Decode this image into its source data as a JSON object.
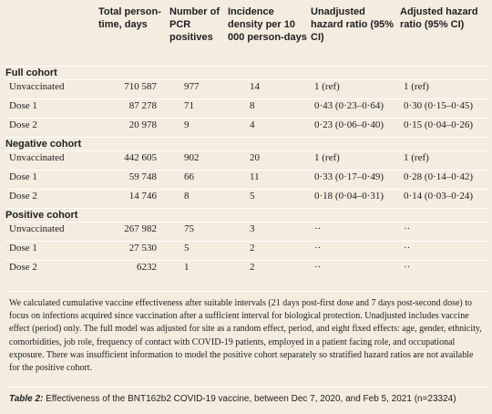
{
  "columns": {
    "c1": "",
    "c2": "Total person-time, days",
    "c3": "Number of PCR positives",
    "c4": "Incidence density per 10 000 person-days",
    "c5": "Unadjusted hazard ratio (95% CI)",
    "c6": "Adjusted hazard ratio (95% CI)"
  },
  "sections": [
    {
      "title": "Full cohort",
      "rows": [
        {
          "label": "Unvaccinated",
          "time": "710 587",
          "pcr": "977",
          "inc": "14",
          "unadj": "1 (ref)",
          "adj": "1 (ref)"
        },
        {
          "label": "Dose 1",
          "time": "87 278",
          "pcr": "71",
          "inc": "8",
          "unadj": "0·43 (0·23–0·64)",
          "adj": "0·30 (0·15–0·45)"
        },
        {
          "label": "Dose 2",
          "time": "20 978",
          "pcr": "9",
          "inc": "4",
          "unadj": "0·23 (0·06–0·40)",
          "adj": "0·15 (0·04–0·26)"
        }
      ]
    },
    {
      "title": "Negative cohort",
      "rows": [
        {
          "label": "Unvaccinated",
          "time": "442 605",
          "pcr": "902",
          "inc": "20",
          "unadj": "1 (ref)",
          "adj": "1 (ref)"
        },
        {
          "label": "Dose 1",
          "time": "59 748",
          "pcr": "66",
          "inc": "11",
          "unadj": "0·33 (0·17–0·49)",
          "adj": "0·28 (0·14–0·42)"
        },
        {
          "label": "Dose 2",
          "time": "14 746",
          "pcr": "8",
          "inc": "5",
          "unadj": "0·18 (0·04–0·31)",
          "adj": "0·14 (0·03–0·24)"
        }
      ]
    },
    {
      "title": "Positive cohort",
      "rows": [
        {
          "label": "Unvaccinated",
          "time": "267 982",
          "pcr": "75",
          "inc": "3",
          "unadj": "··",
          "adj": "··"
        },
        {
          "label": "Dose 1",
          "time": "27 530",
          "pcr": "5",
          "inc": "2",
          "unadj": "··",
          "adj": "··"
        },
        {
          "label": "Dose 2",
          "time": "6232",
          "pcr": "1",
          "inc": "2",
          "unadj": "··",
          "adj": "··"
        }
      ]
    }
  ],
  "footnote": "We calculated cumulative vaccine effectiveness after suitable intervals (21 days post-first dose and 7 days post-second dose) to focus on infections acquired since vaccination after a sufficient interval for biological protection. Unadjusted includes vaccine effect (period) only. The full model was adjusted for site as a random effect, period, and eight fixed effects: age, gender, ethnicity, comorbidities, job role, frequency of contact with COVID-19 patients, employed in a patient facing role, and occupational exposure. There was insufficient information to model the positive cohort separately so stratified hazard ratios are not available for the positive cohort.",
  "caption": {
    "lead": "Table 2:",
    "text": " Effectiveness of the BNT162b2 COVID-19 vaccine, between Dec 7, 2020, and Feb 5, 2021 (n=23324)"
  }
}
